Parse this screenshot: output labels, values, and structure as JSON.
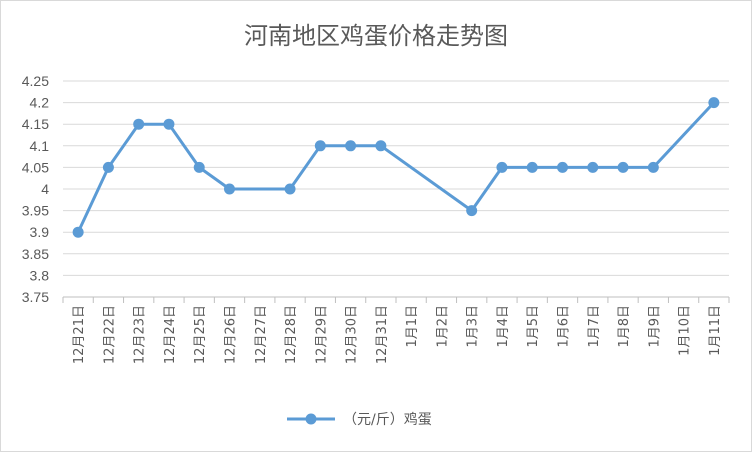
{
  "chart_data": {
    "type": "line",
    "title": "河南地区鸡蛋价格走势图",
    "xlabel": "",
    "ylabel": "",
    "categories": [
      "12月21日",
      "12月22日",
      "12月23日",
      "12月24日",
      "12月25日",
      "12月26日",
      "12月27日",
      "12月28日",
      "12月29日",
      "12月30日",
      "12月31日",
      "1月1日",
      "1月2日",
      "1月3日",
      "1月4日",
      "1月5日",
      "1月6日",
      "1月7日",
      "1月8日",
      "1月9日",
      "1月10日",
      "1月11日"
    ],
    "series": [
      {
        "name": "（元/斤）鸡蛋",
        "color": "#5b9bd5",
        "values": [
          3.9,
          4.05,
          4.15,
          4.15,
          4.05,
          4.0,
          null,
          4.0,
          4.1,
          4.1,
          4.1,
          null,
          null,
          3.95,
          4.05,
          4.05,
          4.05,
          4.05,
          4.05,
          4.05,
          null,
          4.2
        ]
      }
    ],
    "ylim": [
      3.75,
      4.25
    ],
    "yticks": [
      "3.75",
      "3.8",
      "3.85",
      "3.9",
      "3.95",
      "4",
      "4.05",
      "4.1",
      "4.15",
      "4.2",
      "4.25"
    ],
    "grid": true,
    "legend_position": "bottom",
    "connect_gaps": true
  }
}
